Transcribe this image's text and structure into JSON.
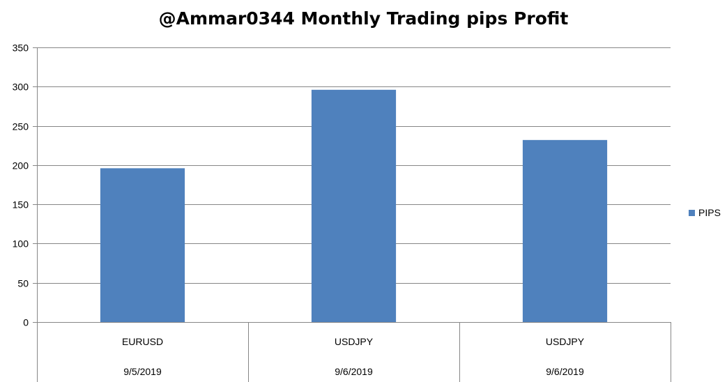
{
  "chart_data": {
    "type": "bar",
    "title": "@Ammar0344 Monthly Trading pips Profit",
    "categories": [
      {
        "pair": "EURUSD",
        "date": "9/5/2019"
      },
      {
        "pair": "USDJPY",
        "date": "9/6/2019"
      },
      {
        "pair": "USDJPY",
        "date": "9/6/2019"
      }
    ],
    "series": [
      {
        "name": "PIPS",
        "values": [
          196,
          296,
          232
        ],
        "color": "#4f81bd"
      }
    ],
    "ylim": [
      0,
      350
    ],
    "yticks": [
      0,
      50,
      100,
      150,
      200,
      250,
      300,
      350
    ],
    "grid": true,
    "legend": "right",
    "xlabel": "",
    "ylabel": ""
  }
}
